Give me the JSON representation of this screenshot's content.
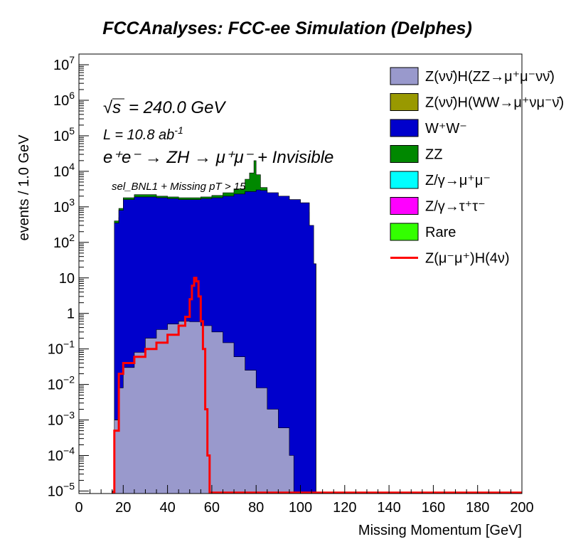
{
  "chart_data": {
    "type": "area",
    "title": "FCCAnalyses: FCC-ee Simulation (Delphes)",
    "xlabel": "Missing Momentum [GeV]",
    "ylabel": "events / 1.0 GeV",
    "xlim": [
      0,
      200
    ],
    "ylim": [
      8.5e-06,
      20000000
    ],
    "yscale": "log",
    "stacked": true,
    "x_ticks": [
      "0",
      "20",
      "40",
      "60",
      "80",
      "100",
      "120",
      "140",
      "160",
      "180",
      "200"
    ],
    "y_ticks": [
      {
        "base": "10",
        "exp": "7"
      },
      {
        "base": "10",
        "exp": "6"
      },
      {
        "base": "10",
        "exp": "5"
      },
      {
        "base": "10",
        "exp": "4"
      },
      {
        "base": "10",
        "exp": "3"
      },
      {
        "base": "10",
        "exp": "2"
      },
      {
        "base": "10",
        "exp": ""
      },
      {
        "base": "1",
        "exp": ""
      },
      {
        "base": "10",
        "exp": "−1"
      },
      {
        "base": "10",
        "exp": "−2"
      },
      {
        "base": "10",
        "exp": "−3"
      },
      {
        "base": "10",
        "exp": "−4"
      },
      {
        "base": "10",
        "exp": "−5"
      }
    ],
    "annotations": {
      "sqrt_s": "= 240.0 GeV",
      "lumi_prefix": "L = 10.8 ab",
      "lumi_exp": "-1",
      "process": "e⁺e⁻ → ZH → μ⁺μ⁻ + Invisible",
      "selection": "sel_BNL1 + Missing pT > 15"
    },
    "legend_position": "top-right",
    "legend": [
      {
        "label": "Z(νν̄)H(ZZ→μ⁺μ⁻νν̄)",
        "color": "#9999cc",
        "kind": "box"
      },
      {
        "label": "Z(νν̄)H(WW→μ⁺νμ⁻ν̄)",
        "color": "#999900",
        "kind": "box"
      },
      {
        "label": "W⁺W⁻",
        "color": "#0000cc",
        "kind": "box"
      },
      {
        "label": "ZZ",
        "color": "#008800",
        "kind": "box"
      },
      {
        "label": "Z/γ→μ⁺μ⁻",
        "color": "#00ffff",
        "kind": "box"
      },
      {
        "label": "Z/γ→τ⁺τ⁻",
        "color": "#ff00ff",
        "kind": "box"
      },
      {
        "label": "Rare",
        "color": "#33ff00",
        "kind": "box"
      },
      {
        "label": "Z(μ⁻μ⁺)H(4ν)",
        "color": "#ff0000",
        "kind": "line"
      }
    ],
    "series": [
      {
        "name": "Rare",
        "color": "#33ff00",
        "cumulative": true,
        "points": [
          [
            15,
            1e-05
          ],
          [
            16,
            50
          ],
          [
            18,
            70
          ],
          [
            20,
            100
          ],
          [
            25,
            110
          ],
          [
            30,
            120
          ],
          [
            35,
            130
          ],
          [
            40,
            140
          ],
          [
            45,
            145
          ],
          [
            50,
            150
          ],
          [
            55,
            150
          ],
          [
            60,
            145
          ],
          [
            65,
            140
          ],
          [
            70,
            130
          ],
          [
            75,
            120
          ],
          [
            80,
            110
          ],
          [
            85,
            95
          ],
          [
            90,
            80
          ],
          [
            95,
            60
          ],
          [
            100,
            40
          ],
          [
            104,
            30
          ],
          [
            106,
            25
          ],
          [
            107,
            1e-05
          ]
        ]
      },
      {
        "name": "Z/γ→τ⁺τ⁻",
        "color": "#ff00ff",
        "cumulative": true,
        "points": [
          [
            15,
            1e-05
          ],
          [
            16,
            200
          ],
          [
            18,
            400
          ],
          [
            20,
            500
          ],
          [
            25,
            550
          ],
          [
            30,
            600
          ],
          [
            35,
            620
          ],
          [
            40,
            640
          ],
          [
            45,
            640
          ],
          [
            50,
            640
          ],
          [
            55,
            620
          ],
          [
            60,
            600
          ],
          [
            65,
            550
          ],
          [
            70,
            500
          ],
          [
            75,
            400
          ],
          [
            80,
            300
          ],
          [
            85,
            200
          ],
          [
            90,
            120
          ],
          [
            95,
            80
          ],
          [
            100,
            40
          ],
          [
            104,
            30
          ],
          [
            106,
            25
          ],
          [
            107,
            1e-05
          ]
        ]
      },
      {
        "name": "Z/γ→μ⁺μ⁻",
        "color": "#00ffff",
        "cumulative": true,
        "points": [
          [
            15,
            1e-05
          ],
          [
            16,
            300
          ],
          [
            18,
            500
          ],
          [
            20,
            650
          ],
          [
            25,
            700
          ],
          [
            30,
            740
          ],
          [
            35,
            760
          ],
          [
            40,
            780
          ],
          [
            45,
            790
          ],
          [
            50,
            800
          ],
          [
            55,
            820
          ],
          [
            60,
            830
          ],
          [
            65,
            840
          ],
          [
            70,
            860
          ],
          [
            75,
            880
          ],
          [
            80,
            900
          ],
          [
            85,
            900
          ],
          [
            90,
            880
          ],
          [
            95,
            850
          ],
          [
            100,
            700
          ],
          [
            104,
            200
          ],
          [
            106,
            25
          ],
          [
            107,
            1e-05
          ]
        ]
      },
      {
        "name": "ZZ",
        "color": "#008800",
        "cumulative": true,
        "points": [
          [
            15,
            1e-05
          ],
          [
            16,
            400
          ],
          [
            18,
            900
          ],
          [
            20,
            1800
          ],
          [
            25,
            2200
          ],
          [
            30,
            2200
          ],
          [
            35,
            2000
          ],
          [
            40,
            1900
          ],
          [
            45,
            1800
          ],
          [
            50,
            1800
          ],
          [
            55,
            1900
          ],
          [
            60,
            2100
          ],
          [
            65,
            2500
          ],
          [
            70,
            3200
          ],
          [
            75,
            6000
          ],
          [
            77,
            9000
          ],
          [
            79,
            20000
          ],
          [
            80,
            8000
          ],
          [
            82,
            3500
          ],
          [
            85,
            2500
          ],
          [
            90,
            2000
          ],
          [
            95,
            1600
          ],
          [
            100,
            1300
          ],
          [
            104,
            300
          ],
          [
            106,
            25
          ],
          [
            107,
            1e-05
          ]
        ]
      },
      {
        "name": "W⁺W⁻",
        "color": "#0000cc",
        "cumulative": true,
        "points": [
          [
            15,
            1e-05
          ],
          [
            16,
            350
          ],
          [
            18,
            800
          ],
          [
            20,
            1600
          ],
          [
            25,
            1900
          ],
          [
            30,
            1900
          ],
          [
            35,
            1800
          ],
          [
            40,
            1700
          ],
          [
            45,
            1600
          ],
          [
            50,
            1600
          ],
          [
            55,
            1700
          ],
          [
            60,
            1800
          ],
          [
            65,
            2000
          ],
          [
            70,
            2300
          ],
          [
            75,
            2700
          ],
          [
            80,
            3000
          ],
          [
            82,
            2900
          ],
          [
            85,
            2500
          ],
          [
            90,
            2000
          ],
          [
            95,
            1600
          ],
          [
            100,
            1300
          ],
          [
            104,
            300
          ],
          [
            106,
            25
          ],
          [
            107,
            1e-05
          ]
        ]
      },
      {
        "name": "Z(νν̄)H(WW→μ⁺νμ⁻ν̄)",
        "color": "#999900",
        "cumulative": true,
        "points": [
          [
            15,
            1e-05
          ],
          [
            16,
            0.001
          ],
          [
            18,
            0.008
          ],
          [
            20,
            0.005
          ],
          [
            22,
            0.015
          ],
          [
            25,
            0.01
          ],
          [
            28,
            0.02
          ],
          [
            30,
            0.015
          ],
          [
            33,
            0.02
          ],
          [
            35,
            0.012
          ],
          [
            38,
            0.02
          ],
          [
            40,
            0.015
          ],
          [
            43,
            0.025
          ],
          [
            45,
            0.018
          ],
          [
            48,
            0.012
          ],
          [
            50,
            0.02
          ],
          [
            52,
            0.01
          ],
          [
            55,
            0.013
          ],
          [
            58,
            0.01
          ],
          [
            60,
            0.008
          ],
          [
            62,
            0.012
          ],
          [
            65,
            0.01
          ],
          [
            67,
            0.007
          ],
          [
            68,
            0.0003
          ],
          [
            70,
            0.002
          ],
          [
            72,
            0.0002
          ],
          [
            74,
            0.001
          ],
          [
            75,
            0.0008
          ],
          [
            76,
            0.0001
          ],
          [
            77,
            0.0012
          ],
          [
            78,
            0.0001
          ],
          [
            79,
            0.001
          ],
          [
            80,
            1e-05
          ]
        ]
      },
      {
        "name": "Z(νν̄)H(ZZ→μ⁺μ⁻νν̄)",
        "color": "#9999cc",
        "cumulative": true,
        "points": [
          [
            15,
            1e-05
          ],
          [
            16,
            0.001
          ],
          [
            18,
            0.008
          ],
          [
            20,
            0.03
          ],
          [
            25,
            0.08
          ],
          [
            30,
            0.2
          ],
          [
            35,
            0.35
          ],
          [
            40,
            0.5
          ],
          [
            45,
            0.6
          ],
          [
            50,
            0.58
          ],
          [
            55,
            0.45
          ],
          [
            60,
            0.3
          ],
          [
            65,
            0.15
          ],
          [
            70,
            0.06
          ],
          [
            75,
            0.025
          ],
          [
            80,
            0.008
          ],
          [
            85,
            0.002
          ],
          [
            90,
            0.0006
          ],
          [
            95,
            0.0001
          ],
          [
            97,
            1e-05
          ]
        ]
      },
      {
        "name": "Z(μ⁻μ⁺)H(4ν)",
        "color": "#ff0000",
        "line": true,
        "points": [
          [
            15,
            9e-06
          ],
          [
            16,
            0.0005
          ],
          [
            18,
            0.02
          ],
          [
            20,
            0.04
          ],
          [
            25,
            0.06
          ],
          [
            30,
            0.1
          ],
          [
            35,
            0.15
          ],
          [
            40,
            0.25
          ],
          [
            45,
            0.45
          ],
          [
            48,
            0.8
          ],
          [
            50,
            2.5
          ],
          [
            51,
            6
          ],
          [
            52,
            10
          ],
          [
            53,
            8
          ],
          [
            54,
            3
          ],
          [
            55,
            0.6
          ],
          [
            56,
            0.1
          ],
          [
            57,
            0.002
          ],
          [
            58,
            0.0001
          ],
          [
            59,
            9e-06
          ],
          [
            200,
            9e-06
          ]
        ]
      }
    ]
  }
}
